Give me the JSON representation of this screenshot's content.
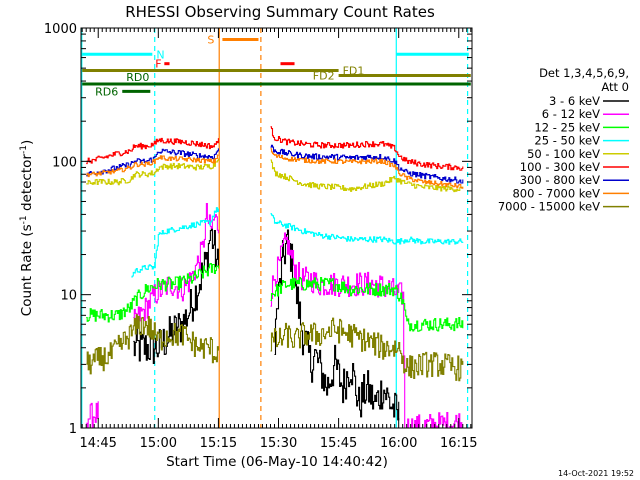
{
  "chart_data": {
    "type": "line",
    "title": "RHESSI Observing Summary Count Rates",
    "xlabel": "Start Time (06-May-10 14:40:42)",
    "ylabel_prefix": "Count Rate (s",
    "ylabel_sup": "-1",
    "ylabel_suffix": " detector",
    "ylabel_close": ")",
    "x_unit": "minutes after 14:40",
    "xlim": [
      0.7,
      98.3
    ],
    "yscale": "log",
    "ylim": [
      1,
      1000
    ],
    "x_ticks": [
      {
        "value": 5,
        "label": "14:45"
      },
      {
        "value": 20,
        "label": "15:00"
      },
      {
        "value": 35,
        "label": "15:15"
      },
      {
        "value": 50,
        "label": "15:30"
      },
      {
        "value": 65,
        "label": "15:45"
      },
      {
        "value": 80,
        "label": "16:00"
      },
      {
        "value": 95,
        "label": "16:15"
      }
    ],
    "y_ticks": [
      {
        "value": 1,
        "label": "1"
      },
      {
        "value": 10,
        "label": "10"
      },
      {
        "value": 100,
        "label": "100"
      },
      {
        "value": 1000,
        "label": "1000"
      }
    ],
    "legend_header": [
      "Det 1,3,4,5,6,9,",
      "Att 0"
    ],
    "series": [
      {
        "name": "3 - 6 keV",
        "color": "#000000",
        "noise": 0.35,
        "x": [
          2,
          13,
          13.5,
          20,
          23,
          26,
          28,
          30,
          32,
          33,
          34,
          35,
          35.5
        ],
        "y": [
          null,
          null,
          4,
          4,
          5,
          6,
          8,
          12,
          18,
          30,
          22,
          15,
          null
        ],
        "x2": [
          49,
          50,
          51,
          52,
          53,
          54,
          55,
          56,
          57,
          58,
          59,
          60,
          62,
          64,
          66,
          68,
          70,
          72,
          74,
          76,
          78,
          80
        ],
        "y2": [
          5,
          10,
          18,
          25,
          20,
          12,
          8,
          5,
          4,
          3,
          3.5,
          3,
          2,
          3,
          2,
          3,
          1.5,
          2,
          1.5,
          2,
          1.5,
          1.2
        ]
      },
      {
        "name": "6 - 12 keV",
        "color": "#ff00ff",
        "noise": 0.22,
        "x": [
          2,
          5,
          5.5,
          13,
          13.5,
          17,
          19,
          21,
          23,
          26,
          28,
          30,
          31,
          32,
          33,
          34,
          35,
          35.5
        ],
        "y": [
          1.2,
          1.3,
          null,
          null,
          6,
          8,
          10,
          11,
          12,
          11,
          13,
          18,
          22,
          40,
          30,
          38,
          32,
          null
        ],
        "x2": [
          48,
          49,
          50,
          51,
          52,
          53,
          54,
          55,
          56,
          58,
          60,
          62,
          66,
          70,
          74,
          78,
          80,
          81,
          81.5,
          95,
          96
        ],
        "y2": [
          10,
          14,
          16,
          22,
          25,
          20,
          16,
          14,
          13,
          13,
          12,
          12,
          12,
          12,
          12,
          11,
          10,
          10,
          1,
          1.1,
          1
        ]
      },
      {
        "name": "12 - 25 keV",
        "color": "#00ff00",
        "noise": 0.12,
        "x": [
          2,
          10,
          13,
          14,
          17,
          20,
          24,
          28,
          32,
          34,
          35,
          35.5
        ],
        "y": [
          7,
          7,
          8,
          9,
          11,
          12,
          12,
          13,
          15,
          16,
          16,
          null
        ],
        "x2": [
          48,
          50,
          52,
          56,
          60,
          64,
          68,
          72,
          76,
          79,
          80,
          81,
          82,
          85,
          90,
          95,
          96
        ],
        "y2": [
          10,
          11,
          12,
          12,
          12,
          12,
          11,
          11,
          11,
          11,
          10,
          9,
          6,
          6,
          6,
          6,
          6
        ]
      },
      {
        "name": "25 - 50 keV",
        "color": "#00ffff",
        "noise": 0.05,
        "x": [
          2,
          8,
          13,
          14,
          17,
          19,
          20,
          22,
          26,
          30,
          33,
          34,
          35,
          35.5
        ],
        "y": [
          null,
          null,
          13,
          15,
          16,
          16,
          28,
          30,
          32,
          34,
          35,
          42,
          44,
          null
        ],
        "x2": [
          48,
          49,
          52,
          56,
          60,
          64,
          68,
          72,
          76,
          79,
          80,
          82,
          86,
          90,
          95,
          96
        ],
        "y2": [
          40,
          35,
          33,
          30,
          28,
          27,
          26,
          26,
          26,
          25,
          25,
          26,
          25,
          25,
          25,
          25
        ]
      },
      {
        "name": "50 - 100 keV",
        "color": "#cccc00",
        "noise": 0.05,
        "x": [
          2,
          4,
          10,
          13,
          14,
          17,
          19,
          20,
          22,
          26,
          30,
          33,
          34,
          35,
          35.5
        ],
        "y": [
          68,
          70,
          70,
          73,
          80,
          80,
          82,
          90,
          92,
          92,
          90,
          92,
          95,
          110,
          null
        ],
        "x2": [
          48,
          49,
          52,
          56,
          60,
          64,
          68,
          72,
          76,
          79,
          80,
          82,
          86,
          90,
          95,
          96
        ],
        "y2": [
          100,
          82,
          76,
          68,
          65,
          64,
          62,
          65,
          68,
          75,
          72,
          68,
          64,
          63,
          62,
          62
        ]
      },
      {
        "name": "100 - 300 keV",
        "color": "#ff0000",
        "noise": 0.05,
        "x": [
          2,
          4,
          10,
          13,
          14,
          17,
          19,
          20,
          22,
          26,
          30,
          33,
          34,
          35,
          35.5
        ],
        "y": [
          100,
          102,
          115,
          120,
          130,
          130,
          135,
          145,
          142,
          140,
          135,
          130,
          130,
          150,
          null
        ],
        "x2": [
          48,
          49,
          52,
          56,
          60,
          64,
          68,
          72,
          76,
          79,
          80,
          82,
          86,
          90,
          95,
          96
        ],
        "y2": [
          175,
          150,
          140,
          135,
          132,
          132,
          132,
          135,
          135,
          125,
          110,
          100,
          95,
          92,
          90,
          88
        ]
      },
      {
        "name": "300 - 800 keV",
        "color": "#0000cc",
        "noise": 0.05,
        "x": [
          2,
          4,
          10,
          13,
          14,
          17,
          19,
          20,
          22,
          26,
          30,
          33,
          34,
          35,
          35.5
        ],
        "y": [
          80,
          82,
          90,
          95,
          100,
          100,
          105,
          120,
          118,
          115,
          110,
          108,
          110,
          125,
          null
        ],
        "x2": [
          48,
          49,
          52,
          56,
          60,
          64,
          68,
          72,
          76,
          79,
          80,
          82,
          86,
          90,
          95,
          96
        ],
        "y2": [
          130,
          120,
          115,
          110,
          108,
          108,
          106,
          108,
          108,
          100,
          90,
          82,
          78,
          75,
          72,
          70
        ]
      },
      {
        "name": "800 - 7000 keV",
        "color": "#ff7f00",
        "noise": 0.04,
        "x": [
          2,
          4,
          10,
          13,
          14,
          17,
          19,
          20,
          22,
          26,
          30,
          33,
          34,
          35,
          35.5
        ],
        "y": [
          80,
          80,
          85,
          90,
          95,
          95,
          100,
          108,
          105,
          104,
          102,
          100,
          100,
          115,
          null
        ],
        "x2": [
          48,
          49,
          52,
          56,
          60,
          64,
          68,
          72,
          76,
          79,
          80,
          82,
          86,
          90,
          95,
          96
        ],
        "y2": [
          120,
          110,
          105,
          102,
          100,
          100,
          99,
          100,
          100,
          92,
          82,
          75,
          70,
          68,
          65,
          64
        ]
      },
      {
        "name": "7000 - 15000 keV",
        "color": "#808000",
        "noise": 0.22,
        "x": [
          2,
          8,
          10,
          13,
          15,
          17,
          19,
          20,
          22,
          26,
          30,
          33,
          34,
          35,
          35.5
        ],
        "y": [
          3,
          3.5,
          4,
          5,
          6,
          6,
          5,
          4.5,
          5,
          5,
          4,
          4,
          3.5,
          4,
          null
        ],
        "x2": [
          48,
          50,
          52,
          54,
          56,
          60,
          64,
          68,
          72,
          76,
          80,
          82,
          86,
          90,
          95,
          96
        ],
        "y2": [
          4.5,
          4.5,
          5,
          4.5,
          5,
          5,
          5.5,
          5,
          4.5,
          4,
          4,
          2.8,
          3,
          3,
          2.8,
          2.8
        ]
      }
    ],
    "vertical_lines": [
      {
        "x": 0.9,
        "color": "#00ffff",
        "style": "solid"
      },
      {
        "x": 19.1,
        "color": "#00ffff",
        "style": "dashed"
      },
      {
        "x": 35.2,
        "color": "#ff7f00",
        "style": "solid"
      },
      {
        "x": 45.6,
        "color": "#ff7f00",
        "style": "dashed"
      },
      {
        "x": 79.4,
        "color": "#00ffff",
        "style": "solid"
      },
      {
        "x": 97.2,
        "color": "#00ffff",
        "style": "dashed"
      }
    ],
    "flag_bars": [
      {
        "label": "N",
        "color": "#00ffff",
        "y": 635,
        "segments": [
          [
            1,
            18.5
          ],
          [
            79.4,
            97.5
          ]
        ],
        "label_at": 19.5,
        "label_side": "right"
      },
      {
        "label": "S",
        "color": "#ff7f00",
        "y": 820,
        "segments": [
          [
            36,
            45
          ]
        ],
        "label_at": 34,
        "label_side": "left"
      },
      {
        "label": "F",
        "color": "#ff0000",
        "y": 540,
        "segments": [
          [
            21.5,
            22.8
          ],
          [
            50.5,
            54
          ]
        ],
        "label_at": 20.8,
        "label_side": "left"
      },
      {
        "label": "FD1",
        "color": "#808000",
        "y": 480,
        "segments": [
          [
            1,
            65
          ]
        ],
        "label_at": 66,
        "label_side": "right"
      },
      {
        "label": "FD2",
        "color": "#808000",
        "y": 440,
        "segments": [
          [
            65,
            98
          ]
        ],
        "label_at": 64,
        "label_side": "left"
      },
      {
        "label": "RD0",
        "color": "#006400",
        "y": 380,
        "segments": [
          [
            1,
            98
          ]
        ],
        "label_at": 12,
        "label_side": "above"
      },
      {
        "label": "RD6",
        "color": "#006400",
        "y": 335,
        "segments": [
          [
            11,
            18
          ]
        ],
        "label_at": 10,
        "label_side": "left"
      }
    ]
  },
  "footer": {
    "timestamp": "14-Oct-2021 19:52"
  }
}
